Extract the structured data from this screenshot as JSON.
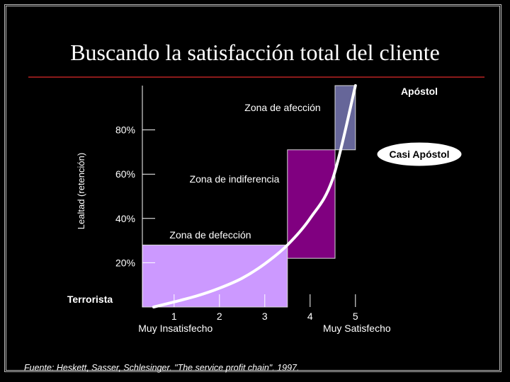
{
  "slide": {
    "title": "Buscando la satisfacción total del cliente",
    "source": "Fuente: Heskett, Sasser, Schlesinger. \"The service profit chain\". 1997."
  },
  "colors": {
    "background": "#000000",
    "rule": "#8b1a1a",
    "zona_defeccion": "#cc99ff",
    "zona_indiferencia": "#800080",
    "zona_afeccion": "#666699",
    "curve": "#ffffff"
  },
  "chart_data": {
    "type": "area",
    "title": "",
    "xlabel": "",
    "ylabel": "Lealtad (retención)",
    "xlim": [
      0.3,
      5.3
    ],
    "ylim": [
      0,
      100
    ],
    "x_ticks": [
      {
        "value": 1,
        "label": "1",
        "sublabel": "Muy Insatisfecho"
      },
      {
        "value": 2,
        "label": "2",
        "sublabel": ""
      },
      {
        "value": 3,
        "label": "3",
        "sublabel": ""
      },
      {
        "value": 4,
        "label": "4",
        "sublabel": ""
      },
      {
        "value": 5,
        "label": "5",
        "sublabel": "Muy Satisfecho"
      }
    ],
    "y_ticks": [
      {
        "value": 20,
        "label": "20%"
      },
      {
        "value": 40,
        "label": "40%"
      },
      {
        "value": 60,
        "label": "60%"
      },
      {
        "value": 80,
        "label": "80%"
      }
    ],
    "zones": [
      {
        "name": "Zona de defección",
        "x_range": [
          0.3,
          3.5
        ],
        "y_range": [
          0,
          28
        ],
        "color": "#cc99ff"
      },
      {
        "name": "Zona de indiferencia",
        "x_range": [
          3.5,
          4.55
        ],
        "y_range": [
          22,
          71
        ],
        "color": "#800080"
      },
      {
        "name": "Zona de afección",
        "x_range": [
          4.55,
          5.0
        ],
        "y_range": [
          71,
          100
        ],
        "color": "#666699"
      }
    ],
    "curve": {
      "x": [
        0.55,
        1.0,
        1.5,
        2.0,
        2.5,
        3.0,
        3.5,
        4.0,
        4.5,
        5.0
      ],
      "y": [
        0.0,
        2.3,
        5.0,
        8.5,
        13.0,
        19.5,
        28.0,
        40.0,
        58.0,
        100.0
      ]
    },
    "annotations": [
      {
        "text": "Apóstol",
        "x": 5.3,
        "y": 100
      },
      {
        "text": "Zona de afección",
        "x": 3.5,
        "y": 91
      },
      {
        "text": "Casi Apóstol",
        "x": 5.3,
        "y": 70
      },
      {
        "text": "Zona de indiferencia",
        "x": 2.8,
        "y": 58
      },
      {
        "text": "Zona de defección",
        "x": 2.4,
        "y": 32
      },
      {
        "text": "Terrorista",
        "x": 0.3,
        "y": 4
      }
    ]
  }
}
